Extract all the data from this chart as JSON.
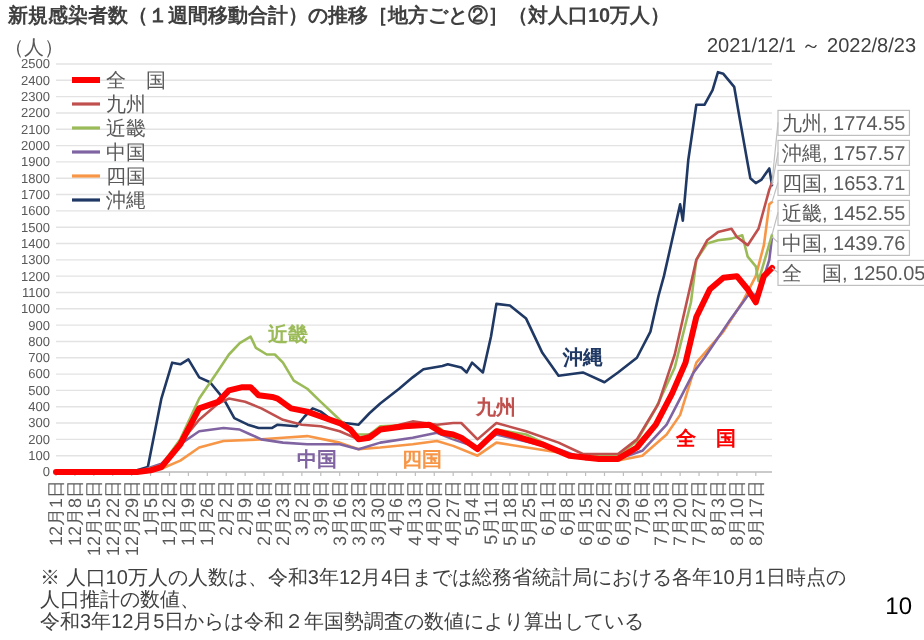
{
  "chart_data": {
    "type": "line",
    "title": "新規感染者数（１週間移動合計）の推移［地方ごと②］（対人口10万人）",
    "subtitle": "2021/12/1 ～ 2022/8/23",
    "ylabel": "（人）",
    "xlim": [
      "2021-12-01",
      "2022-08-23"
    ],
    "ylim": [
      0,
      2500
    ],
    "xticks": [
      {
        "value": "2021-12-01",
        "label": "12月1日"
      },
      {
        "value": "2021-12-08",
        "label": "12月8日"
      },
      {
        "value": "2021-12-15",
        "label": "12月15日"
      },
      {
        "value": "2021-12-22",
        "label": "12月22日"
      },
      {
        "value": "2021-12-29",
        "label": "12月29日"
      },
      {
        "value": "2022-01-05",
        "label": "1月5日"
      },
      {
        "value": "2022-01-12",
        "label": "1月12日"
      },
      {
        "value": "2022-01-19",
        "label": "1月19日"
      },
      {
        "value": "2022-01-26",
        "label": "1月26日"
      },
      {
        "value": "2022-02-02",
        "label": "2月2日"
      },
      {
        "value": "2022-02-09",
        "label": "2月9日"
      },
      {
        "value": "2022-02-16",
        "label": "2月16日"
      },
      {
        "value": "2022-02-23",
        "label": "2月23日"
      },
      {
        "value": "2022-03-02",
        "label": "3月2日"
      },
      {
        "value": "2022-03-09",
        "label": "3月9日"
      },
      {
        "value": "2022-03-16",
        "label": "3月16日"
      },
      {
        "value": "2022-03-23",
        "label": "3月23日"
      },
      {
        "value": "2022-03-30",
        "label": "3月30日"
      },
      {
        "value": "2022-04-06",
        "label": "4月6日"
      },
      {
        "value": "2022-04-13",
        "label": "4月13日"
      },
      {
        "value": "2022-04-20",
        "label": "4月20日"
      },
      {
        "value": "2022-04-27",
        "label": "4月27日"
      },
      {
        "value": "2022-05-04",
        "label": "5月4日"
      },
      {
        "value": "2022-05-11",
        "label": "5月11日"
      },
      {
        "value": "2022-05-18",
        "label": "5月18日"
      },
      {
        "value": "2022-05-25",
        "label": "5月25日"
      },
      {
        "value": "2022-06-01",
        "label": "6月1日"
      },
      {
        "value": "2022-06-08",
        "label": "6月8日"
      },
      {
        "value": "2022-06-15",
        "label": "6月15日"
      },
      {
        "value": "2022-06-22",
        "label": "6月22日"
      },
      {
        "value": "2022-06-29",
        "label": "6月29日"
      },
      {
        "value": "2022-07-06",
        "label": "7月6日"
      },
      {
        "value": "2022-07-13",
        "label": "7月13日"
      },
      {
        "value": "2022-07-20",
        "label": "7月20日"
      },
      {
        "value": "2022-07-27",
        "label": "7月27日"
      },
      {
        "value": "2022-08-03",
        "label": "8月3日"
      },
      {
        "value": "2022-08-10",
        "label": "8月10日"
      },
      {
        "value": "2022-08-17",
        "label": "8月17日"
      }
    ],
    "yticks": [
      0,
      100,
      200,
      300,
      400,
      500,
      600,
      700,
      800,
      900,
      1000,
      1100,
      1200,
      1300,
      1400,
      1500,
      1600,
      1700,
      1800,
      1900,
      2000,
      2100,
      2200,
      2300,
      2400,
      2500
    ],
    "grid": "y",
    "legend": "top left",
    "series": [
      {
        "name": "全　国",
        "color": "#ff0000",
        "x": [
          "2021-12-01",
          "2021-12-31",
          "2022-01-05",
          "2022-01-09",
          "2022-01-16",
          "2022-01-23",
          "2022-01-30",
          "2022-02-03",
          "2022-02-08",
          "2022-02-11",
          "2022-02-14",
          "2022-02-19",
          "2022-02-21",
          "2022-02-26",
          "2022-03-04",
          "2022-03-09",
          "2022-03-16",
          "2022-03-20",
          "2022-03-23",
          "2022-03-27",
          "2022-03-31",
          "2022-04-09",
          "2022-04-18",
          "2022-04-23",
          "2022-04-27",
          "2022-04-30",
          "2022-05-06",
          "2022-05-13",
          "2022-05-20",
          "2022-05-30",
          "2022-06-09",
          "2022-06-20",
          "2022-06-27",
          "2022-07-04",
          "2022-07-11",
          "2022-07-17",
          "2022-07-22",
          "2022-07-26",
          "2022-07-31",
          "2022-08-05",
          "2022-08-10",
          "2022-08-14",
          "2022-08-17",
          "2022-08-20",
          "2022-08-23"
        ],
        "values": [
          0,
          0,
          10,
          30,
          170,
          390,
          430,
          500,
          520,
          520,
          470,
          460,
          450,
          390,
          370,
          340,
          300,
          260,
          200,
          210,
          260,
          280,
          290,
          240,
          230,
          210,
          140,
          250,
          220,
          170,
          100,
          80,
          80,
          150,
          290,
          480,
          670,
          950,
          1120,
          1190,
          1200,
          1120,
          1040,
          1200,
          1250.05
        ]
      },
      {
        "name": "九州",
        "color": "#c0504d",
        "x": [
          "2021-12-01",
          "2021-12-31",
          "2022-01-09",
          "2022-01-16",
          "2022-01-23",
          "2022-01-30",
          "2022-02-03",
          "2022-02-09",
          "2022-02-15",
          "2022-02-23",
          "2022-03-02",
          "2022-03-09",
          "2022-03-16",
          "2022-03-23",
          "2022-03-31",
          "2022-04-12",
          "2022-04-21",
          "2022-04-27",
          "2022-04-30",
          "2022-05-06",
          "2022-05-13",
          "2022-05-24",
          "2022-06-05",
          "2022-06-14",
          "2022-06-27",
          "2022-07-04",
          "2022-07-12",
          "2022-07-18",
          "2022-07-26",
          "2022-07-30",
          "2022-08-03",
          "2022-08-08",
          "2022-08-10",
          "2022-08-14",
          "2022-08-18",
          "2022-08-20",
          "2022-08-22",
          "2022-08-23"
        ],
        "values": [
          0,
          0,
          30,
          180,
          320,
          420,
          450,
          430,
          390,
          320,
          290,
          280,
          250,
          200,
          260,
          310,
          290,
          300,
          300,
          200,
          300,
          250,
          180,
          110,
          110,
          200,
          420,
          720,
          1300,
          1420,
          1470,
          1490,
          1440,
          1390,
          1490,
          1610,
          1730,
          1774.55
        ]
      },
      {
        "name": "近畿",
        "color": "#9bbb59",
        "x": [
          "2021-12-01",
          "2021-12-31",
          "2022-01-09",
          "2022-01-16",
          "2022-01-23",
          "2022-01-30",
          "2022-02-03",
          "2022-02-07",
          "2022-02-11",
          "2022-02-13",
          "2022-02-17",
          "2022-02-20",
          "2022-02-23",
          "2022-02-27",
          "2022-03-04",
          "2022-03-09",
          "2022-03-16",
          "2022-03-22",
          "2022-03-27",
          "2022-03-31",
          "2022-04-12",
          "2022-04-21",
          "2022-04-27",
          "2022-04-30",
          "2022-05-06",
          "2022-05-13",
          "2022-05-24",
          "2022-06-09",
          "2022-06-27",
          "2022-07-04",
          "2022-07-11",
          "2022-07-18",
          "2022-07-24",
          "2022-07-26",
          "2022-07-30",
          "2022-08-03",
          "2022-08-08",
          "2022-08-12",
          "2022-08-14",
          "2022-08-17",
          "2022-08-18",
          "2022-08-23"
        ],
        "values": [
          0,
          0,
          40,
          200,
          450,
          620,
          720,
          790,
          830,
          760,
          720,
          720,
          670,
          560,
          510,
          430,
          320,
          230,
          230,
          280,
          290,
          280,
          210,
          210,
          150,
          260,
          230,
          100,
          100,
          190,
          390,
          640,
          1040,
          1300,
          1400,
          1420,
          1430,
          1450,
          1320,
          1260,
          1170,
          1452.55
        ]
      },
      {
        "name": "中国",
        "color": "#8064a2",
        "x": [
          "2021-12-01",
          "2021-12-31",
          "2022-01-09",
          "2022-01-16",
          "2022-01-23",
          "2022-02-01",
          "2022-02-07",
          "2022-02-11",
          "2022-02-15",
          "2022-02-23",
          "2022-03-04",
          "2022-03-16",
          "2022-03-23",
          "2022-03-31",
          "2022-04-12",
          "2022-04-21",
          "2022-04-27",
          "2022-05-06",
          "2022-05-13",
          "2022-06-05",
          "2022-06-15",
          "2022-06-27",
          "2022-07-06",
          "2022-07-15",
          "2022-07-25",
          "2022-07-29",
          "2022-08-07",
          "2022-08-14",
          "2022-08-18",
          "2022-08-22",
          "2022-08-23"
        ],
        "values": [
          0,
          0,
          50,
          170,
          250,
          270,
          260,
          230,
          200,
          180,
          170,
          170,
          140,
          180,
          210,
          240,
          200,
          150,
          230,
          140,
          80,
          80,
          130,
          290,
          610,
          700,
          920,
          1080,
          1090,
          1300,
          1439.76
        ]
      },
      {
        "name": "四国",
        "color": "#f79646",
        "x": [
          "2021-12-01",
          "2021-12-31",
          "2022-01-09",
          "2022-01-16",
          "2022-01-23",
          "2022-02-01",
          "2022-02-15",
          "2022-02-23",
          "2022-03-04",
          "2022-03-16",
          "2022-03-23",
          "2022-03-31",
          "2022-04-12",
          "2022-04-21",
          "2022-04-27",
          "2022-05-06",
          "2022-05-13",
          "2022-06-05",
          "2022-06-15",
          "2022-06-27",
          "2022-07-06",
          "2022-07-15",
          "2022-07-20",
          "2022-07-26",
          "2022-08-05",
          "2022-08-12",
          "2022-08-17",
          "2022-08-20",
          "2022-08-22",
          "2022-08-23"
        ],
        "values": [
          0,
          0,
          20,
          70,
          150,
          190,
          200,
          210,
          220,
          180,
          140,
          150,
          170,
          190,
          160,
          100,
          180,
          120,
          80,
          70,
          100,
          230,
          350,
          670,
          860,
          1040,
          1200,
          1390,
          1640,
          1653.71
        ]
      },
      {
        "name": "沖縄",
        "color": "#1f3864",
        "x": [
          "2021-12-01",
          "2021-12-21",
          "2021-12-31",
          "2022-01-04",
          "2022-01-09",
          "2022-01-13",
          "2022-01-16",
          "2022-01-19",
          "2022-01-23",
          "2022-01-27",
          "2022-02-01",
          "2022-02-05",
          "2022-02-10",
          "2022-02-14",
          "2022-02-19",
          "2022-02-21",
          "2022-02-28",
          "2022-03-03",
          "2022-03-06",
          "2022-03-09",
          "2022-03-13",
          "2022-03-18",
          "2022-03-23",
          "2022-03-27",
          "2022-03-31",
          "2022-04-07",
          "2022-04-12",
          "2022-04-16",
          "2022-04-23",
          "2022-04-25",
          "2022-04-30",
          "2022-05-02",
          "2022-05-04",
          "2022-05-08",
          "2022-05-11",
          "2022-05-13",
          "2022-05-18",
          "2022-05-24",
          "2022-05-30",
          "2022-06-05",
          "2022-06-14",
          "2022-06-22",
          "2022-06-27",
          "2022-07-04",
          "2022-07-09",
          "2022-07-12",
          "2022-07-14",
          "2022-07-17",
          "2022-07-20",
          "2022-07-21",
          "2022-07-23",
          "2022-07-26",
          "2022-07-29",
          "2022-08-01",
          "2022-08-03",
          "2022-08-05",
          "2022-08-09",
          "2022-08-11",
          "2022-08-14",
          "2022-08-15",
          "2022-08-17",
          "2022-08-19",
          "2022-08-22",
          "2022-08-23"
        ],
        "values": [
          0,
          0,
          10,
          30,
          450,
          670,
          660,
          690,
          580,
          550,
          450,
          330,
          290,
          270,
          270,
          290,
          280,
          340,
          390,
          370,
          320,
          300,
          290,
          360,
          420,
          510,
          580,
          630,
          650,
          660,
          640,
          610,
          670,
          610,
          830,
          1030,
          1020,
          940,
          730,
          590,
          610,
          550,
          610,
          700,
          860,
          1080,
          1200,
          1420,
          1640,
          1540,
          1910,
          2250,
          2250,
          2340,
          2450,
          2440,
          2360,
          2170,
          1890,
          1800,
          1770,
          1790,
          1860,
          1757.57
        ]
      }
    ],
    "annotations": [
      {
        "text": "近畿",
        "x": "2022-02-20",
        "y": 720
      },
      {
        "text": "中国",
        "x": "2022-03-04",
        "y": 170
      },
      {
        "text": "四国",
        "x": "2022-04-12",
        "y": 170
      },
      {
        "text": "沖縄",
        "x": "2022-06-14",
        "y": 610
      },
      {
        "text": "九州",
        "x": "2022-05-13",
        "y": 300
      },
      {
        "text": "全　国",
        "x": "2022-07-11",
        "y": 290
      },
      {
        "text": "九州, 1774.55",
        "x": "2022-08-23",
        "y": 1774.55
      },
      {
        "text": "沖縄, 1757.57",
        "x": "2022-08-23",
        "y": 1757.57
      },
      {
        "text": "四国, 1653.71",
        "x": "2022-08-23",
        "y": 1653.71
      },
      {
        "text": "近畿, 1452.55",
        "x": "2022-08-23",
        "y": 1452.55
      },
      {
        "text": "中国, 1439.76",
        "x": "2022-08-23",
        "y": 1439.76
      },
      {
        "text": "全　国, 1250.05",
        "x": "2022-08-23",
        "y": 1250.05
      },
      "※ 人口10万人の人数は、令和3年12月4日までは総務省統計局における各年10月1日時点の人口推計の数値、",
      "令和3年12月5日からは令和２年国勢調査の数値により算出している",
      "10"
    ]
  }
}
